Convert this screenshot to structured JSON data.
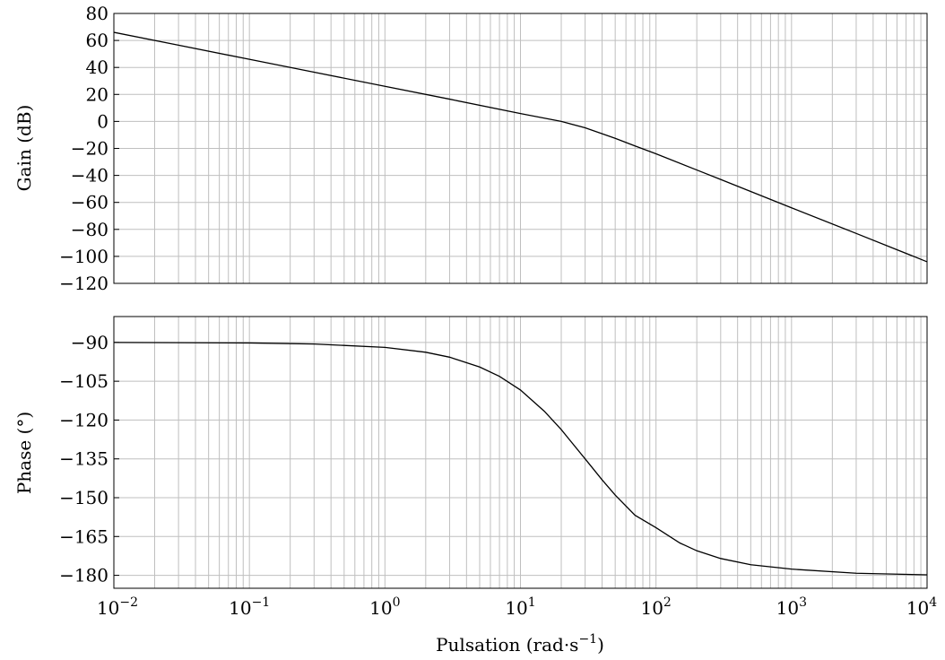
{
  "chart_data": [
    {
      "type": "line",
      "panel": "gain",
      "ylabel": "Gain (dB)",
      "xlabel": "",
      "xscale": "log",
      "xlim": [
        0.01,
        10000
      ],
      "ylim": [
        -120,
        80
      ],
      "yticks": [
        80,
        60,
        40,
        20,
        0,
        -20,
        -40,
        -60,
        -80,
        -100,
        -120
      ],
      "ytick_labels": [
        "80",
        "60",
        "40",
        "20",
        "0",
        "−20",
        "−40",
        "−60",
        "−80",
        "−100",
        "−120"
      ],
      "grid": true,
      "series": [
        {
          "x": [
            0.01,
            0.03,
            0.1,
            0.3,
            1,
            3,
            10,
            20,
            30,
            50,
            70,
            100,
            200,
            300,
            1000,
            3000,
            10000
          ],
          "y": [
            66,
            56.5,
            46,
            36.5,
            26,
            16.5,
            5.8,
            0,
            -4.7,
            -12.5,
            -18.2,
            -24,
            -36,
            -43,
            -64,
            -83,
            -104
          ]
        }
      ]
    },
    {
      "type": "line",
      "panel": "phase",
      "ylabel": "Phase (°)",
      "xlabel": "Pulsation (rad·s⁻¹)",
      "xscale": "log",
      "xlim": [
        0.01,
        10000
      ],
      "ylim": [
        -185,
        -80
      ],
      "xticks": [
        0.01,
        0.1,
        1,
        10,
        100,
        1000,
        10000
      ],
      "xtick_labels": [
        {
          "base": "10",
          "exp": "−2"
        },
        {
          "base": "10",
          "exp": "−1"
        },
        {
          "base": "10",
          "exp": "0"
        },
        {
          "base": "10",
          "exp": "1"
        },
        {
          "base": "10",
          "exp": "2"
        },
        {
          "base": "10",
          "exp": "3"
        },
        {
          "base": "10",
          "exp": "4"
        }
      ],
      "yticks": [
        -90,
        -105,
        -120,
        -135,
        -150,
        -165,
        -180
      ],
      "ytick_labels": [
        "−90",
        "−105",
        "−120",
        "−135",
        "−150",
        "−165",
        "−180"
      ],
      "grid": true,
      "series": [
        {
          "x": [
            0.01,
            0.03,
            0.1,
            0.3,
            1,
            2,
            3,
            5,
            7,
            10,
            15,
            20,
            30,
            40,
            50,
            70,
            100,
            150,
            200,
            300,
            500,
            1000,
            3000,
            10000
          ],
          "y": [
            -90.0,
            -90.1,
            -90.2,
            -90.6,
            -91.9,
            -93.8,
            -95.7,
            -99.5,
            -103.1,
            -108.4,
            -116.6,
            -123.7,
            -135.0,
            -143.1,
            -149.0,
            -156.8,
            -161.6,
            -167.5,
            -170.5,
            -173.5,
            -175.9,
            -177.6,
            -179.2,
            -179.8
          ]
        }
      ]
    }
  ]
}
